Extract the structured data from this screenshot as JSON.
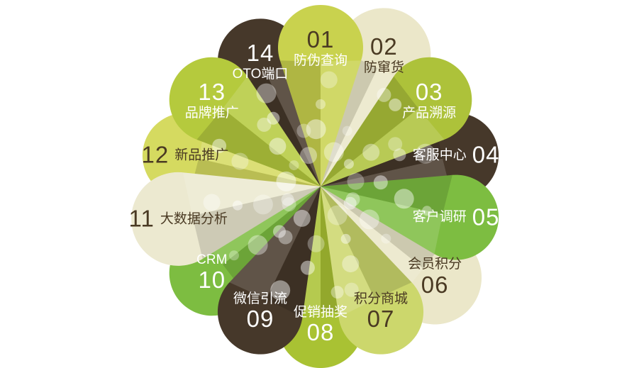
{
  "canvas": {
    "background": "#ffffff"
  },
  "diagram": {
    "kind": "flower-petal-infographic",
    "petal_count": 14
  },
  "decor": {
    "dot_color": "#ffffff",
    "shadow_tint": "#000000",
    "highlight_tint": "#ffffff"
  },
  "petals": [
    {
      "num": "01",
      "label": "防伪查询",
      "color": "#c9d24e",
      "num_color": "#4a3a23",
      "label_color": "#ffffff",
      "layout": "num-top"
    },
    {
      "num": "02",
      "label": "防窜货",
      "color": "#ebe7c9",
      "num_color": "#4a3a23",
      "label_color": "#4a3a23",
      "layout": "num-top"
    },
    {
      "num": "03",
      "label": "产品溯源",
      "color": "#adc23a",
      "num_color": "#ffffff",
      "label_color": "#ffffff",
      "layout": "num-top"
    },
    {
      "num": "04",
      "label": "客服中心",
      "color": "#46382a",
      "num_color": "#ffffff",
      "label_color": "#ffffff",
      "layout": "label-num-inline"
    },
    {
      "num": "05",
      "label": "客户调研",
      "color": "#7dbd41",
      "num_color": "#ffffff",
      "label_color": "#ffffff",
      "layout": "label-num-inline"
    },
    {
      "num": "06",
      "label": "会员积分",
      "color": "#ebe7c9",
      "num_color": "#4a3a23",
      "label_color": "#4a3a23",
      "layout": "label-top"
    },
    {
      "num": "07",
      "label": "积分商城",
      "color": "#ccd76c",
      "num_color": "#4a3a23",
      "label_color": "#4a3a23",
      "layout": "label-top"
    },
    {
      "num": "08",
      "label": "促销抽奖",
      "color": "#a9c233",
      "num_color": "#ffffff",
      "label_color": "#ffffff",
      "layout": "label-top"
    },
    {
      "num": "09",
      "label": "微信引流",
      "color": "#46382a",
      "num_color": "#ffffff",
      "label_color": "#ffffff",
      "layout": "label-top"
    },
    {
      "num": "10",
      "label": "CRM",
      "color": "#7dbd41",
      "num_color": "#ffffff",
      "label_color": "#ffffff",
      "layout": "label-top"
    },
    {
      "num": "11",
      "label": "大数据分析",
      "color": "#ece9d0",
      "num_color": "#4a3a23",
      "label_color": "#4a3a23",
      "layout": "num-label-inline"
    },
    {
      "num": "12",
      "label": "新品推广",
      "color": "#d5da60",
      "num_color": "#4a3a23",
      "label_color": "#4a3a23",
      "layout": "num-label-inline"
    },
    {
      "num": "13",
      "label": "品牌推广",
      "color": "#b5ca3d",
      "num_color": "#ffffff",
      "label_color": "#ffffff",
      "layout": "num-top"
    },
    {
      "num": "14",
      "label": "OTO端口",
      "color": "#46382a",
      "num_color": "#ffffff",
      "label_color": "#ffffff",
      "layout": "num-top"
    }
  ]
}
